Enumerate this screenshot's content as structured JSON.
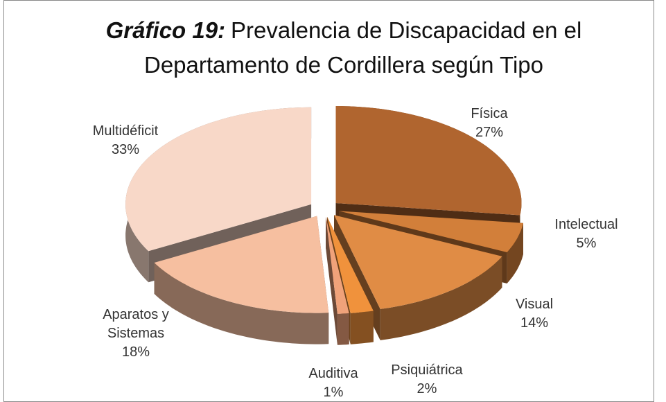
{
  "chart_data": {
    "type": "pie3d",
    "title_label": "Gráfico 19:",
    "title": "Prevalencia de Discapacidad en el Departamento de Cordillera según Tipo",
    "categories": [
      "Física",
      "Intelectual",
      "Visual",
      "Psiquiátrica",
      "Auditiva",
      "Aparatos y Sistemas",
      "Multidéficit"
    ],
    "values": [
      27,
      5,
      14,
      2,
      1,
      18,
      33
    ],
    "value_labels": [
      "27%",
      "5%",
      "14%",
      "2%",
      "1%",
      "18%",
      "33%"
    ],
    "colors": [
      "#b0652f",
      "#d27f3a",
      "#e08c45",
      "#f0923c",
      "#f0a27a",
      "#f6bfa0",
      "#f8d8c8"
    ]
  }
}
